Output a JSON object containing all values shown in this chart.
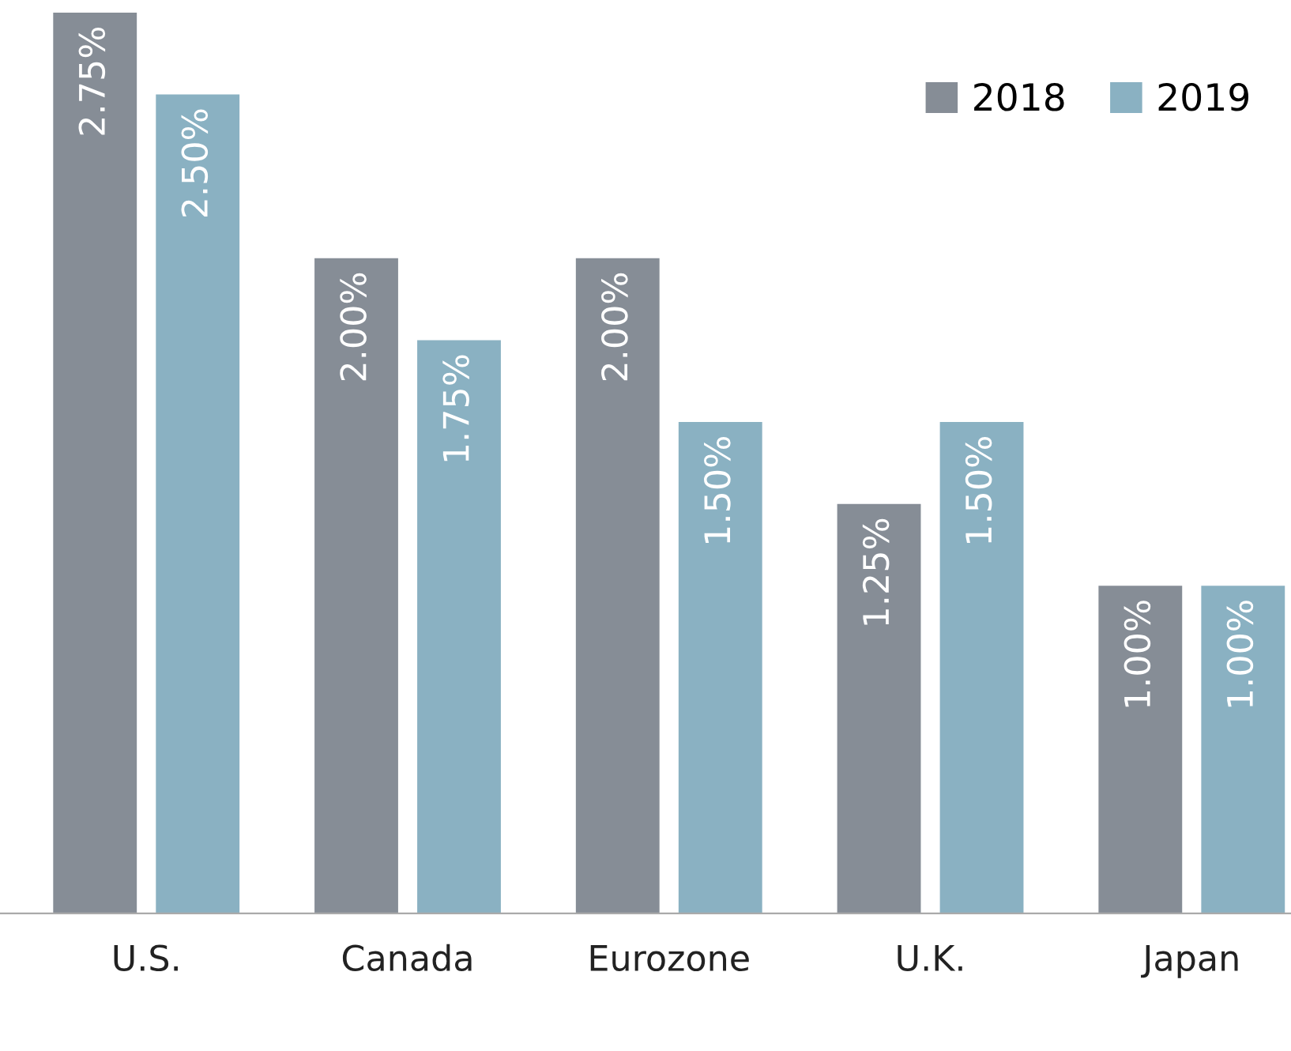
{
  "chart_data": {
    "type": "bar",
    "categories": [
      "U.S.",
      "Canada",
      "Eurozone",
      "U.K.",
      "Japan"
    ],
    "series": [
      {
        "name": "2018",
        "color": "#868d96",
        "values": [
          2.75,
          2.0,
          2.0,
          1.25,
          1.0
        ],
        "value_labels": [
          "2.75%",
          "2.00%",
          "2.00%",
          "1.25%",
          "1.00%"
        ]
      },
      {
        "name": "2019",
        "color": "#8ab1c2",
        "values": [
          2.5,
          1.75,
          1.5,
          1.5,
          1.0
        ],
        "value_labels": [
          "2.50%",
          "1.75%",
          "1.50%",
          "1.50%",
          "1.00%"
        ]
      }
    ],
    "legend": "top right",
    "grid": false
  }
}
